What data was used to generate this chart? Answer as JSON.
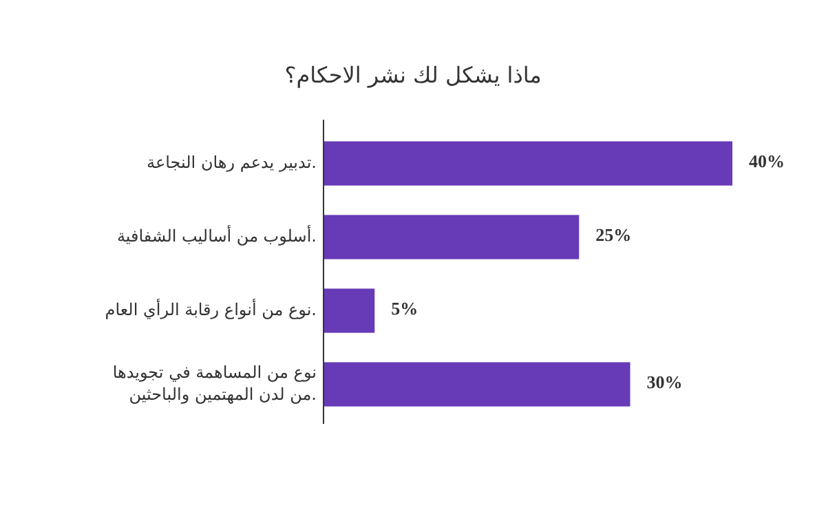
{
  "chart_data": {
    "type": "bar",
    "orientation": "horizontal",
    "title": "ماذا يشكل لك نشر الاحكام؟",
    "categories": [
      "تدبير يدعم رهان النجاعة.",
      "أسلوب من أساليب الشفافية.",
      "نوع من أنواع رقابة الرأي العام.",
      "نوع من المساهمة في تجويدها\nمن لدن المهتمين والباحثين."
    ],
    "values": [
      40,
      25,
      5,
      30
    ],
    "value_labels": [
      "40%",
      "25%",
      "5%",
      "30%"
    ],
    "color": "#673ab7"
  }
}
